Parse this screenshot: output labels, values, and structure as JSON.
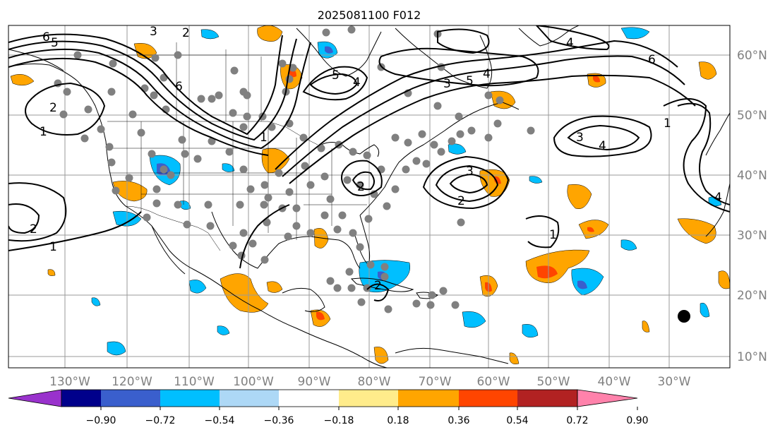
{
  "title": "2025081100 F012",
  "map": {
    "lon_labels": [
      "130°W",
      "120°W",
      "110°W",
      "100°W",
      "90°W",
      "80°W",
      "70°W",
      "60°W",
      "50°W",
      "40°W",
      "30°W"
    ],
    "lat_labels": [
      "60°N",
      "50°N",
      "40°N",
      "30°N",
      "20°N",
      "10°N"
    ],
    "land_edge_color": "#000000",
    "grid_color": "#9a9a9a",
    "station_color": "#808080",
    "marker_color": "#000000"
  },
  "contour_labels": [
    "6",
    "5",
    "3",
    "2",
    "2",
    "1",
    "2",
    "1",
    "6",
    "5",
    "4",
    "4",
    "5",
    "3",
    "4",
    "6",
    "1",
    "3",
    "4",
    "3",
    "2",
    "1",
    "4",
    "2",
    "1",
    "2"
  ],
  "colorbar": {
    "tick_labels": [
      "−0.90",
      "−0.72",
      "−0.54",
      "−0.36",
      "−0.18",
      "0.18",
      "0.36",
      "0.54",
      "0.72",
      "0.90"
    ],
    "colors": [
      "#9932cc",
      "#00008b",
      "#3a5fcd",
      "#00bfff",
      "#add8f6",
      "#ffffff",
      "#ffec8b",
      "#ffa500",
      "#ff4500",
      "#b22222",
      "#ff82ab"
    ]
  }
}
